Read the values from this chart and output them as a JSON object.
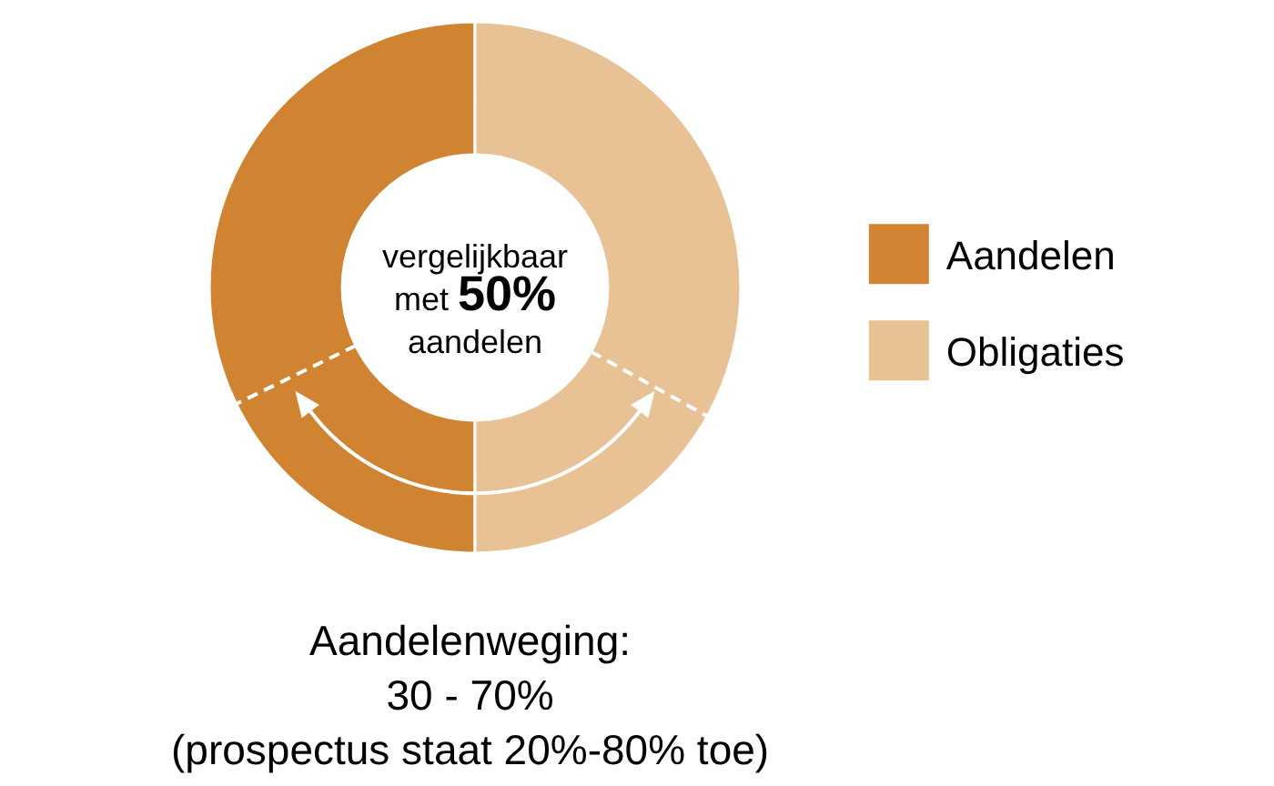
{
  "chart_data": {
    "type": "donut",
    "categories": [
      "Aandelen",
      "Obligaties"
    ],
    "values": [
      50,
      50
    ],
    "colors": [
      "#d08330",
      "#e8c195"
    ],
    "legend": "right",
    "annotations": [
      "vergelijkbaar\nmet 50%\naandelen",
      "Aandelenweging:\n30 - 70%\n(prospectus staat 20%-80% toe)"
    ]
  }
}
